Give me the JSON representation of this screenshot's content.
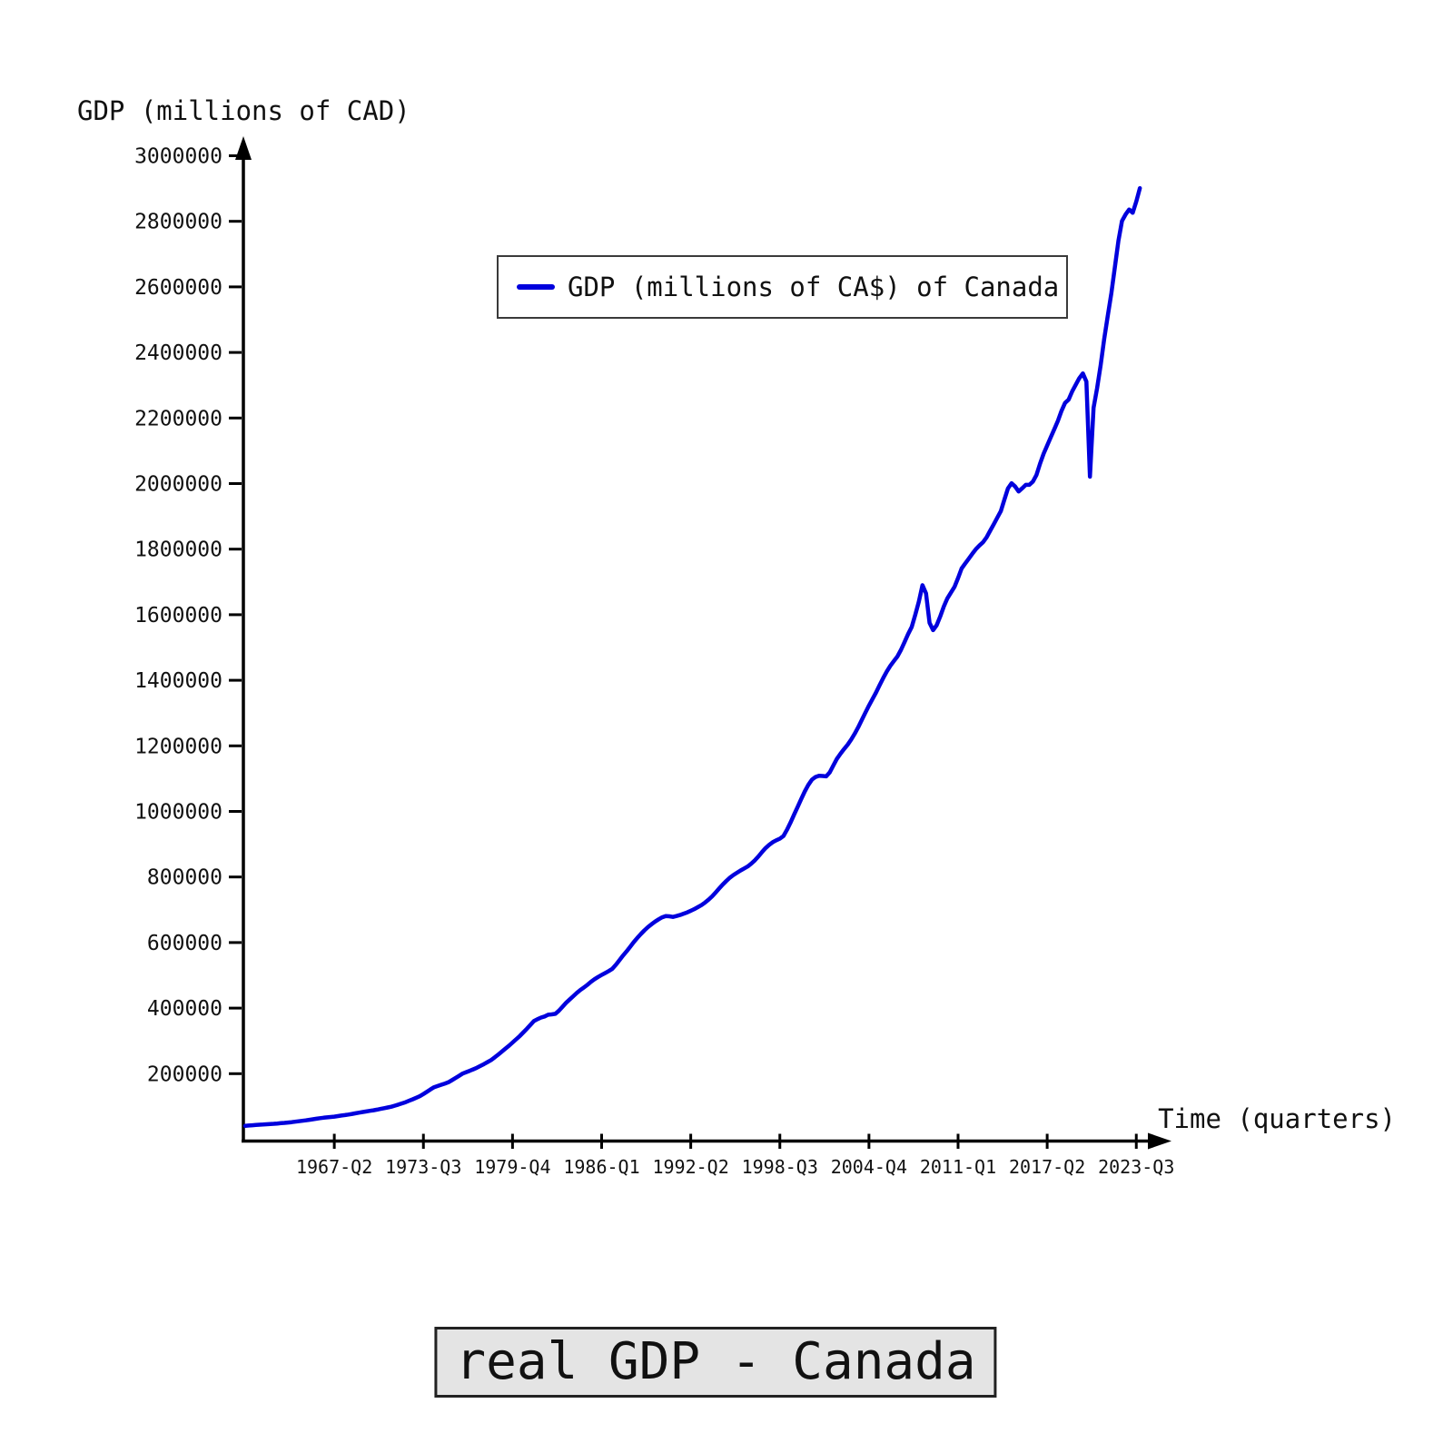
{
  "page": {
    "title_box": "real GDP - Canada",
    "y_axis_label": "GDP (millions of CAD)",
    "x_axis_label": "Time (quarters)",
    "legend_label": "GDP (millions of CA$) of Canada"
  },
  "colors": {
    "line": "#0000dd",
    "axis": "#000000",
    "title_box_bg": "#e4e4e4"
  },
  "chart_data": {
    "type": "line",
    "title": "real GDP - Canada",
    "xlabel": "Time (quarters)",
    "ylabel": "GDP (millions of CAD)",
    "legend": [
      "GDP (millions of CA$) of Canada"
    ],
    "legend_position": "upper center",
    "grid": false,
    "ylim": [
      0,
      3050000
    ],
    "y_ticks": [
      200000,
      400000,
      600000,
      800000,
      1000000,
      1200000,
      1400000,
      1600000,
      1800000,
      2000000,
      2200000,
      2400000,
      2600000,
      2800000,
      3000000
    ],
    "x_start": "1961-Q1",
    "x_frequency": "quarterly",
    "x_tick_labels": [
      "1967-Q2",
      "1973-Q3",
      "1979-Q4",
      "1986-Q1",
      "1992-Q2",
      "1998-Q3",
      "2004-Q4",
      "2011-Q1",
      "2017-Q2",
      "2023-Q3"
    ],
    "x_tick_indices": [
      25,
      50,
      75,
      100,
      125,
      150,
      175,
      200,
      225,
      250
    ],
    "series": [
      {
        "name": "GDP (millions of CA$) of Canada",
        "color": "#0000dd",
        "values": [
          40800,
          41900,
          42600,
          43400,
          44200,
          44900,
          45700,
          46500,
          47200,
          48000,
          49000,
          50000,
          51100,
          52200,
          53500,
          54800,
          56200,
          57500,
          59200,
          60900,
          62700,
          64400,
          65600,
          66700,
          67900,
          69100,
          70600,
          72200,
          73800,
          75400,
          77200,
          79100,
          81100,
          83000,
          84900,
          86700,
          88500,
          90400,
          92500,
          94700,
          97000,
          99300,
          102500,
          105900,
          109400,
          113100,
          117400,
          121900,
          126500,
          131300,
          138000,
          145000,
          152000,
          158700,
          162400,
          166100,
          169900,
          173600,
          180000,
          186600,
          193400,
          200300,
          204600,
          209000,
          213400,
          217900,
          223600,
          229400,
          235400,
          241600,
          249900,
          258400,
          267200,
          276100,
          285400,
          294900,
          304600,
          314400,
          325500,
          336900,
          348600,
          360500,
          366200,
          371100,
          374600,
          379900,
          381000,
          382500,
          392000,
          404000,
          416000,
          426000,
          436000,
          446000,
          455000,
          463000,
          471000,
          480000,
          488000,
          495000,
          501000,
          507000,
          513000,
          520000,
          532000,
          546000,
          560000,
          573000,
          587000,
          601000,
          614000,
          626000,
          637000,
          647000,
          656000,
          664000,
          671000,
          677000,
          681000,
          680000,
          678000,
          681000,
          684000,
          688000,
          692000,
          697000,
          702000,
          708000,
          714000,
          722000,
          731000,
          741000,
          753000,
          765000,
          777000,
          788000,
          798000,
          806000,
          813000,
          820000,
          826000,
          832000,
          841000,
          851000,
          863000,
          876000,
          888000,
          898000,
          906000,
          912000,
          917000,
          925000,
          944000,
          966000,
          990000,
          1014000,
          1038000,
          1061000,
          1081000,
          1097000,
          1105000,
          1109000,
          1108000,
          1107000,
          1119000,
          1140000,
          1160000,
          1176000,
          1190000,
          1203000,
          1219000,
          1237000,
          1257000,
          1279000,
          1301000,
          1323000,
          1343000,
          1363000,
          1385000,
          1407000,
          1427000,
          1444000,
          1459000,
          1473000,
          1493000,
          1517000,
          1541000,
          1563000,
          1600000,
          1640000,
          1690000,
          1665000,
          1575000,
          1553000,
          1568000,
          1595000,
          1625000,
          1650000,
          1668000,
          1685000,
          1712000,
          1741000,
          1756000,
          1771000,
          1786000,
          1800000,
          1811000,
          1821000,
          1836000,
          1856000,
          1876000,
          1896000,
          1916000,
          1951000,
          1985000,
          2001000,
          1991000,
          1976000,
          1986000,
          1996000,
          1996000,
          2006000,
          2026000,
          2061000,
          2091000,
          2116000,
          2141000,
          2166000,
          2191000,
          2221000,
          2246000,
          2256000,
          2281000,
          2301000,
          2321000,
          2336000,
          2311000,
          2021000,
          2231000,
          2291000,
          2361000,
          2441000,
          2511000,
          2581000,
          2661000,
          2741000,
          2801000,
          2821000,
          2836000,
          2826000,
          2861000,
          2901000
        ]
      }
    ]
  }
}
